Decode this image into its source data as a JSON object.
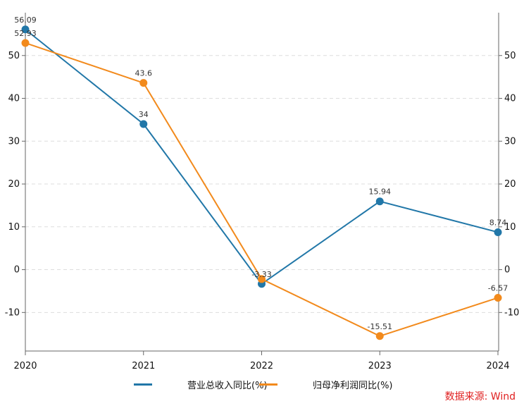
{
  "chart_data": {
    "type": "line",
    "x": [
      "2020",
      "2021",
      "2022",
      "2023",
      "2024"
    ],
    "series": [
      {
        "name": "营业总收入同比(%)",
        "color": "#2177a8",
        "values": [
          56.09,
          34,
          -3.33,
          15.94,
          8.74
        ],
        "labels": [
          "56.09",
          "34",
          "-3.33",
          "15.94",
          "8.74"
        ]
      },
      {
        "name": "归母净利润同比(%)",
        "color": "#f28a1c",
        "values": [
          52.93,
          43.6,
          -2.2,
          -15.51,
          -6.57
        ],
        "labels": [
          "52.93",
          "43.6",
          "",
          "-15.51",
          "-6.57"
        ]
      }
    ],
    "y_ticks": [
      "-10",
      "0",
      "10",
      "20",
      "30",
      "40",
      "50"
    ],
    "y_tick_values": [
      -10,
      0,
      10,
      20,
      30,
      40,
      50
    ],
    "ylim": [
      -19,
      60
    ],
    "grid": true,
    "legend_position": "bottom"
  },
  "source_text": "数据来源: Wind"
}
